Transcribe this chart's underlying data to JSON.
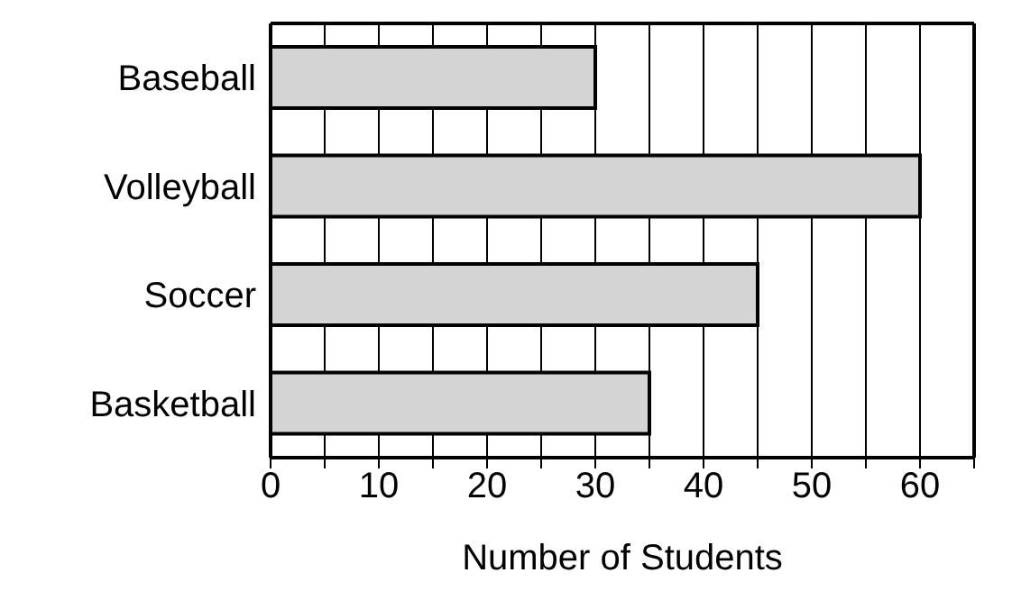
{
  "chart_data": {
    "type": "bar",
    "orientation": "horizontal",
    "xlabel": "Number of Students",
    "categories": [
      "Baseball",
      "Volleyball",
      "Soccer",
      "Basketball"
    ],
    "values": [
      30,
      60,
      45,
      35
    ],
    "color": "#d4d4d4",
    "xlim": [
      0,
      65
    ],
    "xticks": [
      0,
      {
        "value": 5,
        "label": null
      },
      10,
      {
        "value": 15,
        "label": null
      },
      20,
      {
        "value": 25,
        "label": null
      },
      30,
      {
        "value": 35,
        "label": null
      },
      40,
      {
        "value": 45,
        "label": null
      },
      50,
      {
        "value": 55,
        "label": null
      },
      60,
      {
        "value": 65,
        "label": null
      }
    ],
    "grid": "x"
  }
}
